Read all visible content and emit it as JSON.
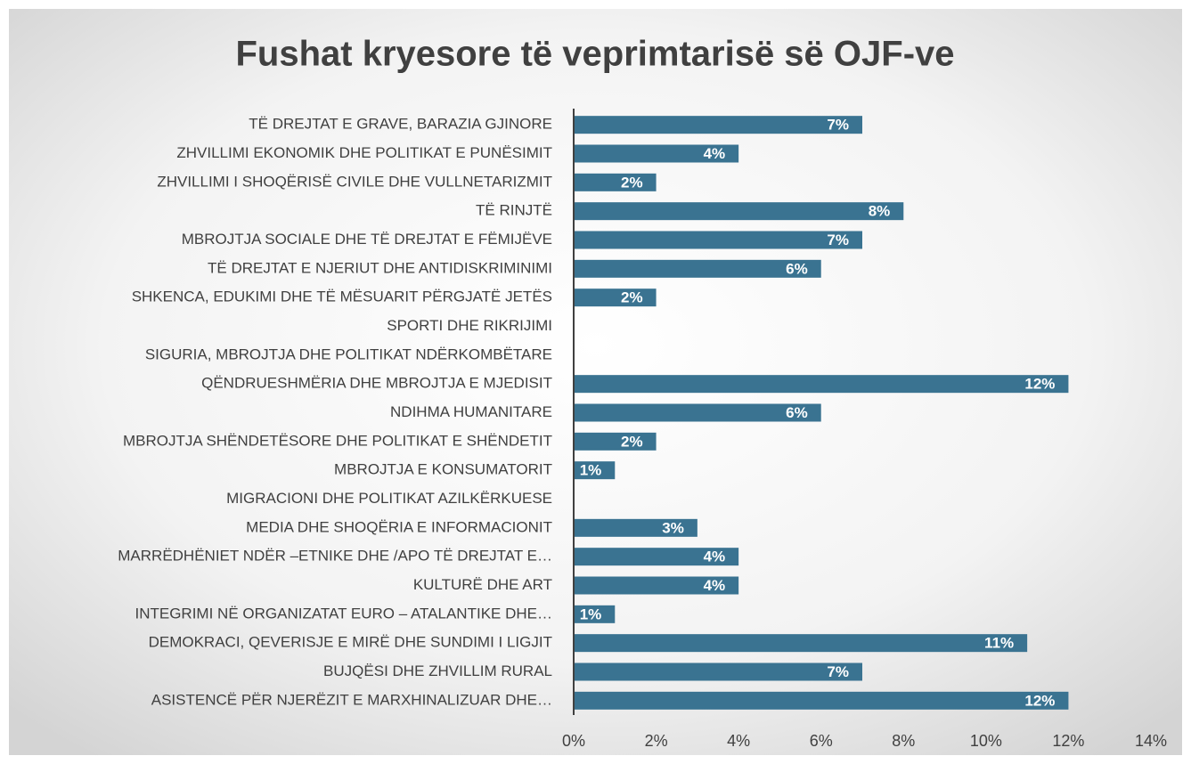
{
  "chart_data": {
    "type": "bar",
    "orientation": "horizontal",
    "title": "Fushat kryesore të veprimtarisë së OJF-ve",
    "categories": [
      "TË DREJTAT E GRAVE, BARAZIA GJINORE",
      "ZHVILLIMI EKONOMIK DHE POLITIKAT E PUNËSIMIT",
      "ZHVILLIMI I SHOQËRISË CIVILE DHE VULLNETARIZMIT",
      "TË RINJTË",
      "MBROJTJA SOCIALE DHE TË DREJTAT E FËMIJËVE",
      "TË DREJTAT E NJERIUT DHE ANTIDISKRIMINIMI",
      "SHKENCA, EDUKIMI DHE TË MËSUARIT PËRGJATË JETËS",
      "SPORTI DHE RIKRIJIMI",
      "SIGURIA, MBROJTJA DHE POLITIKAT NDËRKOMBËTARE",
      "QËNDRUESHMËRIA DHE MBROJTJA E MJEDISIT",
      "NDIHMA HUMANITARE",
      "MBROJTJA SHËNDETËSORE DHE POLITIKAT E SHËNDETIT",
      "MBROJTJA E KONSUMATORIT",
      "MIGRACIONI DHE POLITIKAT AZILKËRKUESE",
      "MEDIA DHE SHOQËRIA E INFORMACIONIT",
      "MARRËDHËNIET NDËR –ETNIKE DHE /APO TË DREJTAT E…",
      "KULTURË DHE ART",
      "INTEGRIMI NË ORGANIZATAT EURO – ATALANTIKE DHE…",
      "DEMOKRACI, QEVERISJE E MIRË DHE SUNDIMI I LIGJIT",
      "BUJQËSI DHE ZHVILLIM RURAL",
      "ASISTENCË PËR NJERËZIT E MARXHINALIZUAR DHE…"
    ],
    "values": [
      7,
      4,
      2,
      8,
      7,
      6,
      2,
      0,
      0,
      12,
      6,
      2,
      1,
      0,
      3,
      4,
      4,
      1,
      11,
      7,
      12
    ],
    "value_labels": [
      "7%",
      "4%",
      "2%",
      "8%",
      "7%",
      "6%",
      "2%",
      null,
      null,
      "12%",
      "6%",
      "2%",
      "1%",
      null,
      "3%",
      "4%",
      "4%",
      "1%",
      "11%",
      "7%",
      "12%"
    ],
    "color": "#3a7391",
    "xlim": [
      0,
      14
    ],
    "xticks": [
      {
        "value": 0,
        "label": "0%"
      },
      {
        "value": 2,
        "label": "2%"
      },
      {
        "value": 4,
        "label": "4%"
      },
      {
        "value": 6,
        "label": "6%"
      },
      {
        "value": 8,
        "label": "8%"
      },
      {
        "value": 10,
        "label": "10%"
      },
      {
        "value": 12,
        "label": "12%"
      },
      {
        "value": 14,
        "label": "14%"
      }
    ]
  }
}
